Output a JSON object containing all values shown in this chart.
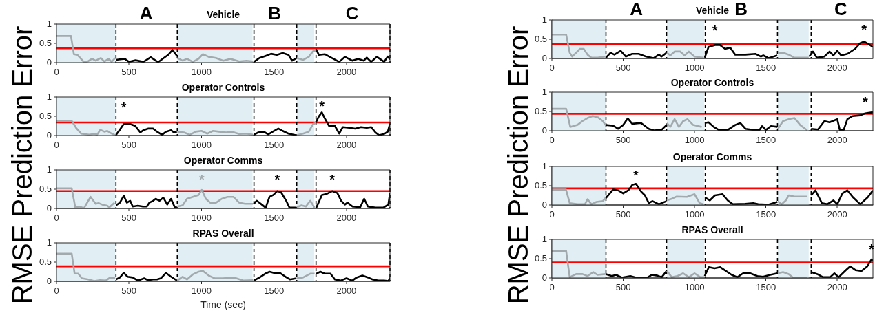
{
  "chart_data": [
    {
      "type": "line",
      "title": "Vehicle",
      "ylabel": "RMSE Prediction Error",
      "xlim": [
        0,
        2300
      ],
      "ylim": [
        0,
        1
      ],
      "xticks": [
        0,
        500,
        1000,
        1500,
        2000
      ],
      "yticks": [
        0,
        0.5,
        1
      ],
      "annotations": [
        "A",
        "B",
        "C"
      ],
      "bands": [
        {
          "axis": "x",
          "from": 0,
          "to": 405,
          "color": "#e1eff4"
        },
        {
          "axis": "x",
          "from": 833,
          "to": 1352,
          "color": "#e1eff4"
        },
        {
          "axis": "x",
          "from": 1657,
          "to": 1778,
          "color": "#e1eff4"
        }
      ],
      "ref_lines": [
        {
          "axis": "y",
          "value": 0.37,
          "color": "#ff0000",
          "line_style": "solid"
        },
        {
          "axis": "x",
          "value": 410,
          "color": "#000000",
          "line_style": "dashed"
        },
        {
          "axis": "x",
          "value": 833,
          "color": "#000000",
          "line_style": "dashed"
        },
        {
          "axis": "x",
          "value": 1362,
          "color": "#000000",
          "line_style": "dashed"
        },
        {
          "axis": "x",
          "value": 1657,
          "color": "#000000",
          "line_style": "dashed"
        },
        {
          "axis": "x",
          "value": 1790,
          "color": "#000000",
          "line_style": "dashed"
        },
        {
          "axis": "x",
          "value": 2300,
          "color": "#000000",
          "line_style": "dashed"
        }
      ],
      "series": [
        {
          "color": "#a3aaae",
          "x": [
            0,
            100,
            120,
            145,
            190,
            215,
            245,
            270,
            305,
            330,
            360,
            380,
            405,
            620,
            833,
            870,
            900,
            940,
            980,
            1010,
            1050,
            1100,
            1150,
            1200,
            1260,
            1310,
            1355,
            1500,
            1657,
            1700,
            1740,
            1770,
            1790
          ],
          "values": [
            0.69,
            0.69,
            0.22,
            0.2,
            0.01,
            0.03,
            0.1,
            0.05,
            0.12,
            0.03,
            0.1,
            0.02,
            0.12,
            null,
            0.12,
            0.05,
            0.1,
            0.02,
            0.1,
            0.22,
            0.15,
            0.12,
            0.05,
            0.1,
            0.03,
            0.05,
            0.03,
            null,
            0.12,
            0.07,
            0.15,
            0.3,
            0.3
          ]
        },
        {
          "color": "#000000",
          "x": [
            410,
            470,
            500,
            545,
            600,
            650,
            700,
            740,
            770,
            800,
            830,
            1100,
            1362,
            1400,
            1440,
            1480,
            1520,
            1560,
            1600,
            1625,
            1657,
            1720,
            1790,
            1810,
            1850,
            1900,
            1950,
            1990,
            2040,
            2080,
            2120,
            2140,
            2170,
            2210,
            2260,
            2285,
            2300
          ],
          "values": [
            0.07,
            0.1,
            0.02,
            0.06,
            0.02,
            0.14,
            0.01,
            0.12,
            0.2,
            0.33,
            0.18,
            null,
            0.02,
            0.12,
            0.17,
            0.23,
            0.2,
            0.25,
            0.2,
            0.05,
            0.12,
            null,
            0.35,
            0.2,
            0.22,
            0.12,
            0.02,
            0.15,
            0.05,
            0.1,
            0.05,
            0.13,
            0.02,
            0.15,
            0.02,
            0.16,
            0.08
          ]
        }
      ]
    },
    {
      "type": "line",
      "title": "Operator Controls",
      "xlim": [
        0,
        2300
      ],
      "ylim": [
        0,
        1
      ],
      "xticks": [
        0,
        500,
        1000,
        1500,
        2000
      ],
      "yticks": [
        0,
        0.5,
        1
      ],
      "annotations": [
        {
          "text": "*",
          "x": 464,
          "y": 0.3
        },
        {
          "text": "*",
          "x": 1830,
          "y": 0.6
        }
      ],
      "bands": [
        {
          "axis": "x",
          "from": 0,
          "to": 405,
          "color": "#e1eff4"
        },
        {
          "axis": "x",
          "from": 833,
          "to": 1352,
          "color": "#e1eff4"
        },
        {
          "axis": "x",
          "from": 1657,
          "to": 1778,
          "color": "#e1eff4"
        }
      ],
      "ref_lines": [
        {
          "axis": "y",
          "value": 0.34,
          "color": "#ff0000",
          "line_style": "solid"
        },
        {
          "axis": "x",
          "value": 410,
          "color": "#000000",
          "line_style": "dashed"
        },
        {
          "axis": "x",
          "value": 833,
          "color": "#000000",
          "line_style": "dashed"
        },
        {
          "axis": "x",
          "value": 1362,
          "color": "#000000",
          "line_style": "dashed"
        },
        {
          "axis": "x",
          "value": 1657,
          "color": "#000000",
          "line_style": "dashed"
        },
        {
          "axis": "x",
          "value": 1790,
          "color": "#000000",
          "line_style": "dashed"
        },
        {
          "axis": "x",
          "value": 2300,
          "color": "#000000",
          "line_style": "dashed"
        }
      ],
      "series": [
        {
          "color": "#a3aaae",
          "x": [
            0,
            105,
            135,
            170,
            225,
            260,
            280,
            302,
            330,
            350,
            385,
            405,
            620,
            833,
            880,
            920,
            960,
            1000,
            1040,
            1080,
            1120,
            1170,
            1210,
            1260,
            1310,
            1355,
            1500,
            1657,
            1700,
            1740,
            1770,
            1790
          ],
          "values": [
            0.38,
            0.38,
            0.2,
            0.05,
            0.02,
            0.04,
            0.02,
            0.15,
            0.1,
            0.12,
            0.04,
            0.01,
            null,
            0.1,
            0.08,
            0.02,
            0.1,
            0.12,
            0.05,
            0.12,
            0.1,
            0.08,
            0.1,
            0.04,
            0.05,
            0.02,
            null,
            0.01,
            0.05,
            0.1,
            0.3,
            0.32
          ]
        },
        {
          "color": "#000000",
          "x": [
            411,
            437,
            464,
            508,
            543,
            578,
            600,
            631,
            667,
            693,
            728,
            755,
            790,
            810,
            830,
            1100,
            1362,
            1390,
            1430,
            1460,
            1500,
            1530,
            1560,
            1600,
            1650,
            1720,
            1790,
            1810,
            1830,
            1850,
            1880,
            1920,
            1950,
            1975,
            2020,
            2060,
            2100,
            2140,
            2170,
            2200,
            2225,
            2260,
            2285,
            2300
          ],
          "values": [
            0.02,
            0.15,
            0.3,
            0.3,
            0.25,
            0.08,
            0.14,
            0.18,
            0.18,
            0.1,
            0.02,
            0.1,
            0.14,
            0.08,
            0.1,
            null,
            0.02,
            0.08,
            0.1,
            0.03,
            0.12,
            0.18,
            0.12,
            0.05,
            0.01,
            null,
            0.35,
            0.5,
            0.6,
            0.45,
            0.25,
            0.25,
            0.05,
            0.22,
            0.2,
            0.18,
            0.22,
            0.2,
            0.22,
            0.08,
            0.01,
            0.04,
            0.1,
            0.3
          ]
        }
      ]
    },
    {
      "type": "line",
      "title": "Operator Comms",
      "xlim": [
        0,
        2300
      ],
      "ylim": [
        0,
        1
      ],
      "xticks": [
        0,
        500,
        1000,
        1500,
        2000
      ],
      "yticks": [
        0,
        0.5,
        1
      ],
      "annotations": [
        {
          "text": "*",
          "x": 1002,
          "y": 0.48
        },
        {
          "text": "*",
          "x": 1522,
          "y": 0.45
        },
        {
          "text": "*",
          "x": 1901,
          "y": 0.45
        }
      ],
      "bands": [
        {
          "axis": "x",
          "from": 0,
          "to": 405,
          "color": "#e1eff4"
        },
        {
          "axis": "x",
          "from": 833,
          "to": 1352,
          "color": "#e1eff4"
        },
        {
          "axis": "x",
          "from": 1657,
          "to": 1778,
          "color": "#e1eff4"
        }
      ],
      "ref_lines": [
        {
          "axis": "y",
          "value": 0.45,
          "color": "#ff0000",
          "line_style": "solid"
        },
        {
          "axis": "x",
          "value": 410,
          "color": "#000000",
          "line_style": "dashed"
        },
        {
          "axis": "x",
          "value": 833,
          "color": "#000000",
          "line_style": "dashed"
        },
        {
          "axis": "x",
          "value": 1362,
          "color": "#000000",
          "line_style": "dashed"
        },
        {
          "axis": "x",
          "value": 1657,
          "color": "#000000",
          "line_style": "dashed"
        },
        {
          "axis": "x",
          "value": 1790,
          "color": "#000000",
          "line_style": "dashed"
        },
        {
          "axis": "x",
          "value": 2300,
          "color": "#000000",
          "line_style": "dashed"
        }
      ],
      "series": [
        {
          "color": "#a3aaae",
          "x": [
            0,
            105,
            130,
            155,
            190,
            235,
            270,
            290,
            315,
            350,
            365,
            400,
            620,
            833,
            870,
            900,
            940,
            980,
            1002,
            1030,
            1060,
            1100,
            1140,
            1180,
            1220,
            1260,
            1300,
            1355,
            1500,
            1657,
            1690,
            1720,
            1750,
            1780
          ],
          "values": [
            0.52,
            0.52,
            0.02,
            0.05,
            0.01,
            0.3,
            0.12,
            0.14,
            0.1,
            0.07,
            0.03,
            0.15,
            null,
            0.05,
            0.08,
            0.25,
            0.3,
            0.35,
            0.48,
            0.25,
            0.15,
            0.15,
            0.25,
            0.3,
            0.3,
            0.15,
            0.12,
            0.12,
            null,
            0.03,
            0.08,
            0.05,
            0.2,
            0.02
          ]
        },
        {
          "color": "#000000",
          "x": [
            411,
            437,
            464,
            485,
            508,
            526,
            561,
            596,
            623,
            640,
            667,
            684,
            711,
            737,
            764,
            790,
            817,
            831,
            1100,
            1360,
            1381,
            1416,
            1443,
            1469,
            1496,
            1522,
            1549,
            1584,
            1607,
            1655,
            1720,
            1792,
            1831,
            1866,
            1901,
            1937,
            1963,
            1989,
            2007,
            2042,
            2095,
            2122,
            2148,
            2201,
            2254,
            2289,
            2300
          ],
          "values": [
            0.08,
            0.15,
            0.33,
            0.15,
            0.2,
            0.05,
            0.07,
            0.05,
            0.05,
            0.15,
            0.2,
            0.25,
            0.2,
            0.28,
            0.1,
            0.25,
            0.02,
            0.03,
            null,
            0.12,
            0.2,
            0.1,
            0.02,
            0.3,
            0.35,
            0.45,
            0.42,
            0.2,
            0.02,
            0.02,
            null,
            0.02,
            0.35,
            0.38,
            0.45,
            0.4,
            0.2,
            0.1,
            0.15,
            0.05,
            0.03,
            0.25,
            0.05,
            0.02,
            0.02,
            0.1,
            0.4
          ]
        }
      ]
    },
    {
      "type": "line",
      "title": "RPAS Overall",
      "xlabel": "Time (sec)",
      "xlim": [
        0,
        2300
      ],
      "ylim": [
        0,
        1
      ],
      "xticks": [
        0,
        500,
        1000,
        1500,
        2000
      ],
      "yticks": [
        0,
        0.5,
        1
      ],
      "bands": [
        {
          "axis": "x",
          "from": 0,
          "to": 405,
          "color": "#e1eff4"
        },
        {
          "axis": "x",
          "from": 833,
          "to": 1352,
          "color": "#e1eff4"
        },
        {
          "axis": "x",
          "from": 1657,
          "to": 1778,
          "color": "#e1eff4"
        }
      ],
      "ref_lines": [
        {
          "axis": "y",
          "value": 0.39,
          "color": "#ff0000",
          "line_style": "solid"
        },
        {
          "axis": "x",
          "value": 410,
          "color": "#000000",
          "line_style": "dashed"
        },
        {
          "axis": "x",
          "value": 833,
          "color": "#000000",
          "line_style": "dashed"
        },
        {
          "axis": "x",
          "value": 1362,
          "color": "#000000",
          "line_style": "dashed"
        },
        {
          "axis": "x",
          "value": 1657,
          "color": "#000000",
          "line_style": "dashed"
        },
        {
          "axis": "x",
          "value": 1790,
          "color": "#000000",
          "line_style": "dashed"
        },
        {
          "axis": "x",
          "value": 2300,
          "color": "#000000",
          "line_style": "dashed"
        }
      ],
      "series": [
        {
          "color": "#a3aaae",
          "x": [
            0,
            105,
            125,
            150,
            175,
            220,
            260,
            300,
            340,
            370,
            405,
            620,
            833,
            870,
            900,
            940,
            980,
            1010,
            1050,
            1090,
            1150,
            1200,
            1240,
            1290,
            1355,
            1500,
            1657,
            1700,
            1750,
            1780
          ],
          "values": [
            0.72,
            0.72,
            0.2,
            0.2,
            0.08,
            0.05,
            0.01,
            0.03,
            0.02,
            0.1,
            0.08,
            null,
            0.02,
            0.12,
            0.05,
            0.18,
            0.25,
            0.27,
            0.15,
            0.08,
            0.08,
            0.1,
            0.08,
            0.02,
            0.03,
            null,
            0.08,
            0.1,
            0.2,
            0.2
          ]
        },
        {
          "color": "#000000",
          "x": [
            411,
            437,
            464,
            490,
            526,
            561,
            605,
            631,
            667,
            693,
            720,
            755,
            790,
            831,
            1100,
            1360,
            1400,
            1440,
            1470,
            1500,
            1540,
            1580,
            1610,
            1655,
            1720,
            1792,
            1820,
            1850,
            1890,
            1920,
            1960,
            2000,
            2040,
            2070,
            2110,
            2150,
            2180,
            2220,
            2260,
            2290,
            2300
          ],
          "values": [
            0.05,
            0.1,
            0.22,
            0.12,
            0.1,
            0.02,
            0.08,
            0.03,
            0.05,
            0.05,
            0.08,
            0.22,
            0.12,
            0.02,
            null,
            0.02,
            0.1,
            0.2,
            0.25,
            0.22,
            0.22,
            0.12,
            0.05,
            0.08,
            null,
            0.2,
            0.25,
            0.2,
            0.2,
            0.05,
            0.02,
            0.08,
            0.02,
            0.1,
            0.15,
            0.1,
            0.05,
            0.02,
            0.02,
            0.01,
            0.1
          ]
        }
      ]
    },
    {
      "type": "line",
      "title": "Vehicle",
      "ylabel": "RMSE Prediction Error",
      "xlim": [
        0,
        2250
      ],
      "ylim": [
        0,
        1
      ],
      "xticks": [
        0,
        500,
        1000,
        1500,
        2000
      ],
      "yticks": [
        0,
        0.5,
        1
      ],
      "annotations": [
        "A",
        "B",
        "C",
        {
          "text": "*",
          "x": 1143,
          "y": 0.35
        },
        {
          "text": "*",
          "x": 2188,
          "y": 0.44
        }
      ],
      "bands": [
        {
          "axis": "x",
          "from": 0,
          "to": 379,
          "color": "#e1eff4"
        },
        {
          "axis": "x",
          "from": 806,
          "to": 1068,
          "color": "#e1eff4"
        },
        {
          "axis": "x",
          "from": 1584,
          "to": 1800,
          "color": "#e1eff4"
        }
      ],
      "ref_lines": [
        {
          "axis": "y",
          "value": 0.38,
          "color": "#ff0000",
          "line_style": "solid"
        },
        {
          "axis": "x",
          "value": 379,
          "color": "#000000",
          "line_style": "dashed"
        },
        {
          "axis": "x",
          "value": 804,
          "color": "#000000",
          "line_style": "dashed"
        },
        {
          "axis": "x",
          "value": 1075,
          "color": "#000000",
          "line_style": "dashed"
        },
        {
          "axis": "x",
          "value": 1581,
          "color": "#000000",
          "line_style": "dashed"
        },
        {
          "axis": "x",
          "value": 1817,
          "color": "#000000",
          "line_style": "dashed"
        }
      ],
      "series": [
        {
          "color": "#a3aaae",
          "x": [
            0,
            100,
            125,
            143,
            170,
            197,
            223,
            250,
            277,
            322,
            357,
            375,
            600,
            806,
            830,
            860,
            900,
            930,
            960,
            1000,
            1060,
            1300,
            1584,
            1620,
            1660,
            1700,
            1760,
            1800
          ],
          "values": [
            0.62,
            0.62,
            0.15,
            0.05,
            0.15,
            0.25,
            0.25,
            0.1,
            0.02,
            0.02,
            0.04,
            0.05,
            null,
            0.15,
            0.08,
            0.18,
            0.18,
            0.08,
            0.18,
            0.05,
            0.02,
            null,
            0.15,
            0.15,
            0.1,
            0.02,
            0.02,
            0.02
          ]
        },
        {
          "color": "#000000",
          "x": [
            379,
            411,
            438,
            482,
            518,
            563,
            607,
            661,
            714,
            750,
            768,
            804,
            940,
            1071,
            1098,
            1143,
            1178,
            1214,
            1250,
            1285,
            1357,
            1428,
            1464,
            1482,
            1518,
            1580,
            1700,
            1803,
            1830,
            1857,
            1910,
            1946,
            1973,
            2000,
            2027,
            2071,
            2125,
            2161,
            2188,
            2215,
            2250
          ],
          "values": [
            0.02,
            0.15,
            0.1,
            0.2,
            0.05,
            0.12,
            0.12,
            0.05,
            0.01,
            0.1,
            0.05,
            0.15,
            null,
            0.02,
            0.3,
            0.35,
            0.35,
            0.25,
            0.28,
            0.1,
            0.1,
            0.12,
            0.05,
            0.08,
            0.01,
            0.08,
            null,
            0.05,
            0.18,
            0.02,
            0.05,
            0.18,
            0.08,
            0.2,
            0.08,
            0.12,
            0.25,
            0.4,
            0.44,
            0.38,
            0.3
          ]
        }
      ]
    },
    {
      "type": "line",
      "title": "Operator Controls",
      "xlim": [
        0,
        2250
      ],
      "ylim": [
        0,
        1
      ],
      "xticks": [
        0,
        500,
        1000,
        1500,
        2000
      ],
      "yticks": [
        0,
        0.5,
        1
      ],
      "annotations": [
        {
          "text": "*",
          "x": 2196,
          "y": 0.45
        }
      ],
      "bands": [
        {
          "axis": "x",
          "from": 0,
          "to": 379,
          "color": "#e1eff4"
        },
        {
          "axis": "x",
          "from": 806,
          "to": 1068,
          "color": "#e1eff4"
        },
        {
          "axis": "x",
          "from": 1584,
          "to": 1800,
          "color": "#e1eff4"
        }
      ],
      "ref_lines": [
        {
          "axis": "y",
          "value": 0.44,
          "color": "#ff0000",
          "line_style": "solid"
        },
        {
          "axis": "x",
          "value": 379,
          "color": "#000000",
          "line_style": "dashed"
        },
        {
          "axis": "x",
          "value": 804,
          "color": "#000000",
          "line_style": "dashed"
        },
        {
          "axis": "x",
          "value": 1075,
          "color": "#000000",
          "line_style": "dashed"
        },
        {
          "axis": "x",
          "value": 1581,
          "color": "#000000",
          "line_style": "dashed"
        },
        {
          "axis": "x",
          "value": 1817,
          "color": "#000000",
          "line_style": "dashed"
        }
      ],
      "series": [
        {
          "color": "#a3aaae",
          "x": [
            0,
            100,
            129,
            179,
            214,
            250,
            286,
            322,
            357,
            375,
            600,
            806,
            830,
            860,
            890,
            920,
            950,
            990,
            1050,
            1300,
            1584,
            1620,
            1660,
            1700,
            1740,
            1790
          ],
          "values": [
            0.57,
            0.57,
            0.1,
            0.15,
            0.25,
            0.33,
            0.38,
            0.35,
            0.25,
            0.15,
            null,
            0.2,
            0.1,
            0.3,
            0.1,
            0.25,
            0.3,
            0.15,
            0.1,
            null,
            0.05,
            0.25,
            0.3,
            0.33,
            0.15,
            0.01
          ]
        },
        {
          "color": "#000000",
          "x": [
            379,
            429,
            464,
            500,
            532,
            563,
            625,
            679,
            714,
            768,
            804,
            940,
            1071,
            1098,
            1134,
            1170,
            1232,
            1285,
            1321,
            1357,
            1411,
            1455,
            1473,
            1500,
            1535,
            1580,
            1700,
            1817,
            1865,
            1910,
            1946,
            2000,
            2018,
            2045,
            2071,
            2107,
            2161,
            2196,
            2250
          ],
          "values": [
            0.15,
            0.13,
            0.05,
            0.15,
            0.32,
            0.18,
            0.2,
            0.05,
            0.01,
            0.02,
            0.15,
            null,
            0.2,
            0.22,
            0.1,
            0.02,
            0.02,
            0.15,
            0.2,
            0.05,
            0.02,
            0.02,
            0.12,
            0.02,
            0.12,
            0.1,
            null,
            0.05,
            0.03,
            0.25,
            0.22,
            0.3,
            0.02,
            0.02,
            0.3,
            0.38,
            0.4,
            0.45,
            0.48
          ]
        }
      ]
    },
    {
      "type": "line",
      "title": "Operator Comms",
      "xlim": [
        0,
        2250
      ],
      "ylim": [
        0,
        1
      ],
      "xticks": [
        0,
        500,
        1000,
        1500,
        2000
      ],
      "yticks": [
        0,
        0.5,
        1
      ],
      "annotations": [
        {
          "text": "*",
          "x": 589,
          "y": 0.55
        }
      ],
      "bands": [
        {
          "axis": "x",
          "from": 0,
          "to": 379,
          "color": "#e1eff4"
        },
        {
          "axis": "x",
          "from": 806,
          "to": 1068,
          "color": "#e1eff4"
        },
        {
          "axis": "x",
          "from": 1584,
          "to": 1800,
          "color": "#e1eff4"
        }
      ],
      "ref_lines": [
        {
          "axis": "y",
          "value": 0.43,
          "color": "#ff0000",
          "line_style": "solid"
        },
        {
          "axis": "x",
          "value": 379,
          "color": "#000000",
          "line_style": "dashed"
        },
        {
          "axis": "x",
          "value": 804,
          "color": "#000000",
          "line_style": "dashed"
        },
        {
          "axis": "x",
          "value": 1075,
          "color": "#000000",
          "line_style": "dashed"
        },
        {
          "axis": "x",
          "value": 1581,
          "color": "#000000",
          "line_style": "dashed"
        },
        {
          "axis": "x",
          "value": 1817,
          "color": "#000000",
          "line_style": "dashed"
        }
      ],
      "series": [
        {
          "color": "#a3aaae",
          "x": [
            0,
            99,
            125,
            179,
            232,
            250,
            277,
            313,
            357,
            375,
            600,
            806,
            840,
            875,
            946,
            1000,
            1035,
            1062,
            1300,
            1584,
            1610,
            1640,
            1660,
            1700,
            1790
          ],
          "values": [
            0.4,
            0.4,
            0.05,
            0.02,
            0.02,
            0.15,
            0.02,
            0.08,
            0.1,
            0.18,
            null,
            0.12,
            0.16,
            0.22,
            0.21,
            0.28,
            0.05,
            0.02,
            null,
            0.1,
            0.02,
            0.12,
            0.25,
            0.22,
            0.22
          ]
        },
        {
          "color": "#000000",
          "x": [
            379,
            429,
            464,
            500,
            536,
            563,
            589,
            625,
            652,
            679,
            705,
            750,
            804,
            940,
            1080,
            1107,
            1143,
            1196,
            1232,
            1268,
            1357,
            1411,
            1446,
            1518,
            1580,
            1700,
            1817,
            1847,
            1892,
            1930,
            1973,
            2000,
            2036,
            2071,
            2110,
            2161,
            2214,
            2250
          ],
          "values": [
            0.18,
            0.4,
            0.38,
            0.3,
            0.38,
            0.52,
            0.55,
            0.35,
            0.25,
            0.05,
            0.1,
            0.02,
            0.1,
            null,
            0.18,
            0.12,
            0.25,
            0.28,
            0.12,
            0.02,
            0.03,
            0.05,
            0.02,
            0.01,
            0.08,
            null,
            0.25,
            0.38,
            0.05,
            0.02,
            0.12,
            0.02,
            0.3,
            0.38,
            0.2,
            0.02,
            0.2,
            0.38
          ]
        }
      ]
    },
    {
      "type": "line",
      "title": "RPAS Overall",
      "xlim": [
        0,
        2250
      ],
      "ylim": [
        0,
        1
      ],
      "xticks": [
        0,
        500,
        1000,
        1500,
        2000
      ],
      "yticks": [
        0,
        0.5,
        1
      ],
      "annotations": [
        {
          "text": "*",
          "x": 2240,
          "y": 0.48
        }
      ],
      "bands": [
        {
          "axis": "x",
          "from": 0,
          "to": 379,
          "color": "#e1eff4"
        },
        {
          "axis": "x",
          "from": 806,
          "to": 1068,
          "color": "#e1eff4"
        },
        {
          "axis": "x",
          "from": 1584,
          "to": 1800,
          "color": "#e1eff4"
        }
      ],
      "ref_lines": [
        {
          "axis": "y",
          "value": 0.4,
          "color": "#ff0000",
          "line_style": "solid"
        },
        {
          "axis": "x",
          "value": 379,
          "color": "#000000",
          "line_style": "dashed"
        },
        {
          "axis": "x",
          "value": 804,
          "color": "#000000",
          "line_style": "dashed"
        },
        {
          "axis": "x",
          "value": 1075,
          "color": "#000000",
          "line_style": "dashed"
        },
        {
          "axis": "x",
          "value": 1581,
          "color": "#000000",
          "line_style": "dashed"
        },
        {
          "axis": "x",
          "value": 1817,
          "color": "#000000",
          "line_style": "dashed"
        }
      ],
      "series": [
        {
          "color": "#a3aaae",
          "x": [
            0,
            100,
            125,
            170,
            215,
            250,
            290,
            320,
            375,
            600,
            806,
            840,
            880,
            920,
            960,
            1000,
            1040,
            1068,
            1300,
            1584,
            1620,
            1660,
            1690,
            1790
          ],
          "values": [
            0.7,
            0.7,
            0.02,
            0.1,
            0.1,
            0.05,
            0.15,
            0.08,
            0.1,
            null,
            0.18,
            0.02,
            0.05,
            0.12,
            0.02,
            0.12,
            0.02,
            0.02,
            null,
            0.12,
            0.15,
            0.1,
            0.01,
            0.01
          ]
        },
        {
          "color": "#000000",
          "x": [
            379,
            420,
            450,
            490,
            550,
            590,
            670,
            700,
            740,
            770,
            804,
            940,
            1071,
            1100,
            1140,
            1180,
            1220,
            1260,
            1300,
            1340,
            1390,
            1440,
            1480,
            1530,
            1580,
            1700,
            1817,
            1860,
            1900,
            1950,
            1980,
            2010,
            2060,
            2090,
            2130,
            2170,
            2210,
            2240,
            2250
          ],
          "values": [
            0.1,
            0.05,
            0.08,
            0.01,
            0.05,
            0.01,
            0.01,
            0.08,
            0.06,
            0.02,
            0.18,
            null,
            0.05,
            0.28,
            0.25,
            0.28,
            0.18,
            0.08,
            0.02,
            0.12,
            0.12,
            0.05,
            0.03,
            0.08,
            0.12,
            null,
            0.15,
            0.1,
            0.02,
            0.02,
            0.12,
            0.02,
            0.2,
            0.3,
            0.2,
            0.18,
            0.3,
            0.48,
            0.45
          ]
        }
      ]
    }
  ]
}
